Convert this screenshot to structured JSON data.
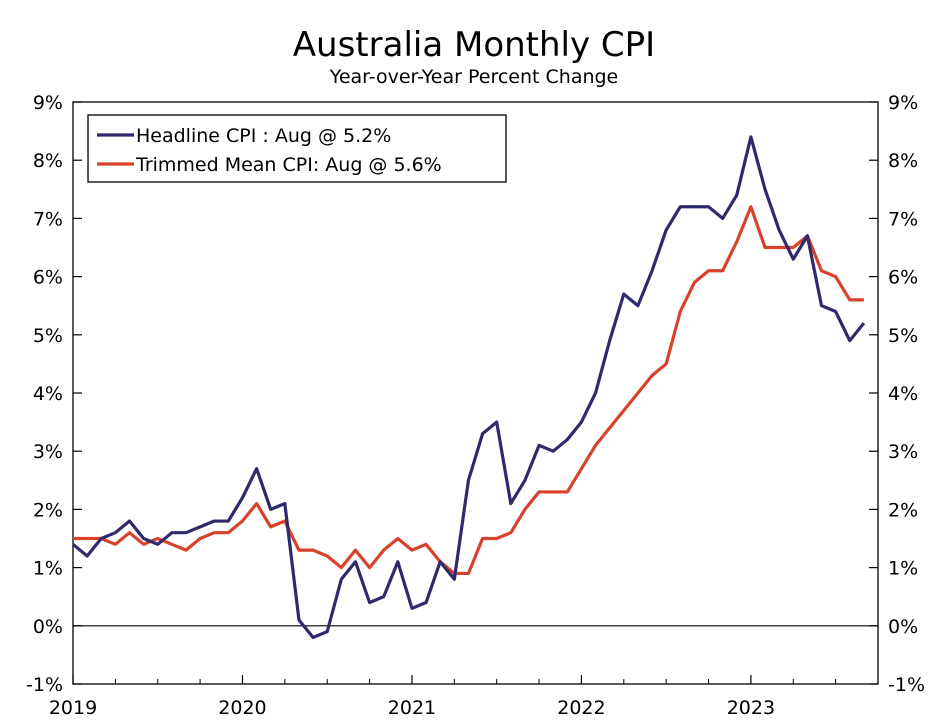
{
  "chart_data": {
    "type": "line",
    "title": "Australia Monthly CPI",
    "subtitle": "Year-over-Year Percent Change",
    "xlabel": "",
    "ylabel": "",
    "ylim": [
      -1,
      9
    ],
    "xlim": [
      2019.0,
      2023.75
    ],
    "y_ticks": [
      9,
      8,
      7,
      6,
      5,
      4,
      3,
      2,
      1,
      0,
      -1
    ],
    "y_tick_labels": [
      "9%",
      "8%",
      "7%",
      "6%",
      "5%",
      "4%",
      "3%",
      "2%",
      "1%",
      "0%",
      "-1%"
    ],
    "x_tick_labels": [
      "2019",
      "2020",
      "2021",
      "2022",
      "2023"
    ],
    "x_tick_values": [
      2019,
      2020,
      2021,
      2022,
      2023
    ],
    "grid": false,
    "zero_line": true,
    "legend_position": "top-left",
    "start_year": 2019,
    "series": [
      {
        "name": "Headline CPI : Aug @ 5.2%",
        "color": "#2e2a6b",
        "values": [
          1.4,
          1.2,
          1.5,
          1.6,
          1.8,
          1.5,
          1.4,
          1.6,
          1.6,
          1.7,
          1.8,
          1.8,
          2.2,
          2.7,
          2.0,
          2.1,
          0.1,
          -0.2,
          -0.1,
          0.8,
          1.1,
          0.4,
          0.5,
          1.1,
          0.3,
          0.4,
          1.1,
          0.8,
          2.5,
          3.3,
          3.5,
          2.1,
          2.5,
          3.1,
          3.0,
          3.2,
          3.5,
          4.0,
          4.9,
          5.7,
          5.5,
          6.1,
          6.8,
          7.2,
          7.2,
          7.2,
          7.0,
          7.4,
          8.4,
          7.5,
          6.8,
          6.3,
          6.7,
          5.5,
          5.4,
          4.9,
          5.2
        ]
      },
      {
        "name": "Trimmed Mean CPI: Aug @ 5.6%",
        "color": "#d9412b",
        "values": [
          1.5,
          1.5,
          1.5,
          1.4,
          1.6,
          1.4,
          1.5,
          1.4,
          1.3,
          1.5,
          1.6,
          1.6,
          1.8,
          2.1,
          1.7,
          1.8,
          1.3,
          1.3,
          1.2,
          1.0,
          1.3,
          1.0,
          1.3,
          1.5,
          1.3,
          1.4,
          1.1,
          0.9,
          0.9,
          1.5,
          1.5,
          1.6,
          2.0,
          2.3,
          2.3,
          2.3,
          2.7,
          3.1,
          3.4,
          3.7,
          4.0,
          4.3,
          4.5,
          5.4,
          5.9,
          6.1,
          6.1,
          6.6,
          7.2,
          6.5,
          6.5,
          6.5,
          6.7,
          6.1,
          6.0,
          5.6,
          5.6
        ]
      }
    ]
  }
}
